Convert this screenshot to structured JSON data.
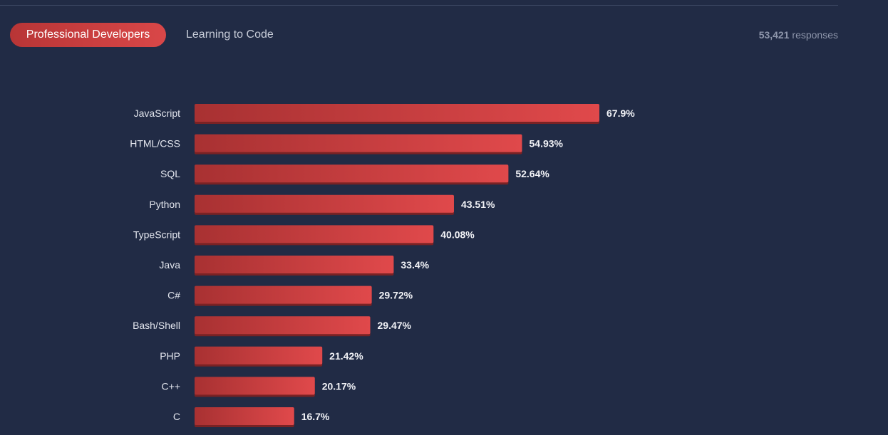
{
  "tabs": [
    {
      "label": "Professional Developers",
      "active": true
    },
    {
      "label": "Learning to Code",
      "active": false
    }
  ],
  "responses": {
    "count": "53,421",
    "label": "responses"
  },
  "colors": {
    "background": "#212b45",
    "bar_start": "#a83132",
    "bar_end": "#e0494b",
    "bar_shadow": "#7a2224"
  },
  "chart_data": {
    "type": "bar",
    "orientation": "horizontal",
    "categories": [
      "JavaScript",
      "HTML/CSS",
      "SQL",
      "Python",
      "TypeScript",
      "Java",
      "C#",
      "Bash/Shell",
      "PHP",
      "C++",
      "C"
    ],
    "values": [
      67.9,
      54.93,
      52.64,
      43.51,
      40.08,
      33.4,
      29.72,
      29.47,
      21.42,
      20.17,
      16.7
    ],
    "value_labels": [
      "67.9%",
      "54.93%",
      "52.64%",
      "43.51%",
      "40.08%",
      "33.4%",
      "29.72%",
      "29.47%",
      "21.42%",
      "20.17%",
      "16.7%"
    ],
    "title": "",
    "xlabel": "",
    "ylabel": "",
    "xlim": [
      0,
      67.9
    ],
    "grid": false,
    "legend": "none"
  }
}
